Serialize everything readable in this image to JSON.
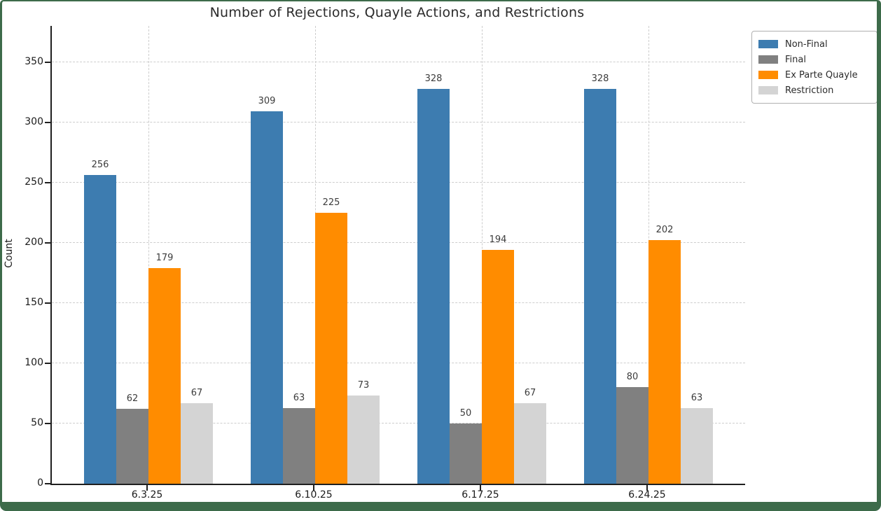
{
  "frame": {
    "border_color": "#3d6b4a"
  },
  "chart_data": {
    "type": "bar",
    "title": "Number of Rejections, Quayle Actions, and Restrictions",
    "xlabel": "",
    "ylabel": "Count",
    "categories": [
      "6.3.25",
      "6.10.25",
      "6.17.25",
      "6.24.25"
    ],
    "series": [
      {
        "name": "Non-Final",
        "color": "#3d7cb0",
        "values": [
          256,
          309,
          328,
          328
        ]
      },
      {
        "name": "Final",
        "color": "#808080",
        "values": [
          62,
          63,
          50,
          80
        ]
      },
      {
        "name": "Ex Parte Quayle",
        "color": "#ff8c00",
        "values": [
          179,
          225,
          194,
          202
        ]
      },
      {
        "name": "Restriction",
        "color": "#d4d4d4",
        "values": [
          67,
          73,
          67,
          63
        ]
      }
    ],
    "yticks": [
      0,
      50,
      100,
      150,
      200,
      250,
      300,
      350
    ],
    "ylim": [
      0,
      380
    ],
    "grid": true,
    "value_labels": true,
    "legend_position": "upper-right-outside"
  }
}
